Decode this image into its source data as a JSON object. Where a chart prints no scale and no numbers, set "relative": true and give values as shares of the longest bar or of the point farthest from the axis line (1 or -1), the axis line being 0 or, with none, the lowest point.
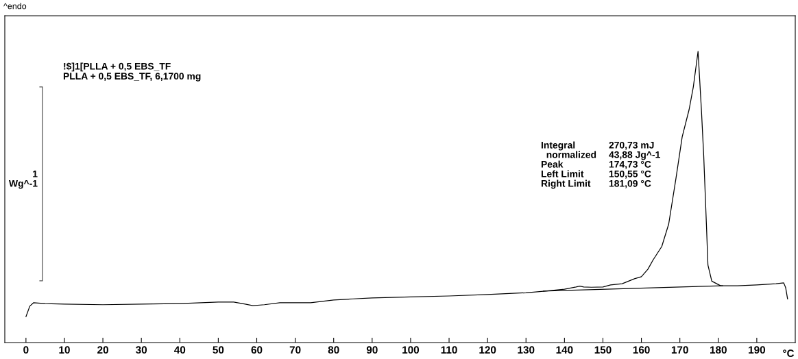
{
  "chart_data": {
    "type": "line",
    "relative": true,
    "xlabel": "°C",
    "ylabel": "1\nWg^-1",
    "xlim": [
      -5.5,
      200
    ],
    "xticks": [
      0,
      10,
      20,
      30,
      40,
      50,
      60,
      70,
      80,
      90,
      100,
      110,
      120,
      130,
      140,
      150,
      160,
      170,
      180,
      190
    ],
    "marker": "none",
    "line_style": "solid",
    "series": [
      {
        "color": "#000000",
        "x": [
          0,
          1,
          2,
          5,
          10,
          20,
          30,
          40,
          50,
          54,
          57,
          59,
          62,
          66,
          74,
          80,
          85,
          90,
          100,
          110,
          120,
          130,
          135,
          140,
          143,
          144,
          145,
          147,
          150,
          152,
          155,
          158.2,
          160,
          161.7,
          163,
          165.3,
          167.1,
          169,
          170.6,
          172.4,
          173.5,
          174.73,
          175.6,
          176.2,
          176.9,
          177.3,
          178.3,
          180.6,
          185,
          190,
          195,
          197,
          197.5,
          198
        ],
        "values": [
          0.089,
          0.125,
          0.137,
          0.134,
          0.132,
          0.13,
          0.132,
          0.134,
          0.139,
          0.139,
          0.132,
          0.127,
          0.13,
          0.137,
          0.137,
          0.146,
          0.15,
          0.153,
          0.157,
          0.16,
          0.165,
          0.171,
          0.177,
          0.183,
          0.191,
          0.194,
          0.191,
          0.19,
          0.191,
          0.198,
          0.202,
          0.219,
          0.226,
          0.252,
          0.283,
          0.33,
          0.407,
          0.565,
          0.706,
          0.8,
          0.878,
          1,
          0.8,
          0.642,
          0.407,
          0.266,
          0.211,
          0.195,
          0.195,
          0.198,
          0.202,
          0.205,
          0.189,
          0.15
        ]
      },
      {
        "color": "#000000",
        "x": [
          134.5,
          181.09
        ],
        "values": [
          0.177,
          0.195
        ]
      },
      {
        "type": "line",
        "color": "#555555",
        "x": [
          3.6,
          4.3,
          4.3,
          3.6
        ],
        "values": [
          0.878,
          0.878,
          0.212,
          0.212
        ]
      }
    ],
    "annotations": [
      "^endo",
      "!$]1[PLLA + 0,5 EBS_TF\nPLLA + 0,5 EBS_TF, 6,1700 mg",
      "Integral",
      "270,73 mJ",
      "  normalized",
      "43,88 Jg^-1",
      "Peak",
      "174,73 °C",
      "Left Limit",
      "150,55 °C",
      "Right Limit",
      "181,09 °C"
    ]
  }
}
